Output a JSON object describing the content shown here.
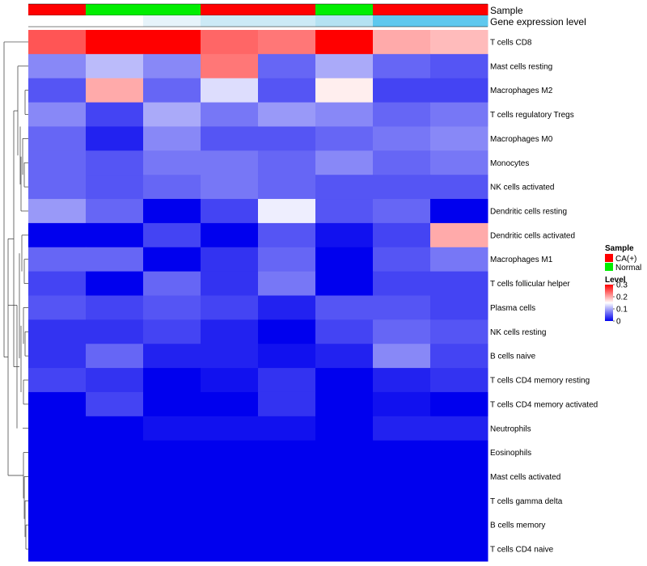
{
  "chart_data": {
    "type": "heatmap",
    "annotation_labels": [
      "Sample",
      "Gene expression level"
    ],
    "sample_groups": [
      "CA(+)",
      "Normal",
      "Normal",
      "CA(+)",
      "CA(+)",
      "Normal",
      "CA(+)",
      "CA(+)"
    ],
    "sample_group_colors": {
      "CA(+)": "#ff0000",
      "Normal": "#00ee00"
    },
    "gene_expression_colors": [
      "#ffffff",
      "#ffffff",
      "#e6f3fa",
      "#cceaf6",
      "#cceaf6",
      "#b4e2f2",
      "#5ec8ee",
      "#5ec8ee"
    ],
    "rows": [
      {
        "label": "T cells CD8",
        "values": [
          0.25,
          0.3,
          0.3,
          0.24,
          0.23,
          0.3,
          0.2,
          0.19
        ]
      },
      {
        "label": "Mast cells resting",
        "values": [
          0.08,
          0.11,
          0.08,
          0.23,
          0.06,
          0.1,
          0.06,
          0.05
        ]
      },
      {
        "label": "Macrophages M2",
        "values": [
          0.05,
          0.2,
          0.06,
          0.13,
          0.05,
          0.16,
          0.04,
          0.04
        ]
      },
      {
        "label": "T cells regulatory  Tregs",
        "values": [
          0.08,
          0.04,
          0.1,
          0.07,
          0.09,
          0.08,
          0.06,
          0.07
        ]
      },
      {
        "label": "Macrophages M0",
        "values": [
          0.06,
          0.02,
          0.08,
          0.05,
          0.05,
          0.06,
          0.07,
          0.08
        ]
      },
      {
        "label": "Monocytes",
        "values": [
          0.06,
          0.05,
          0.07,
          0.07,
          0.06,
          0.08,
          0.06,
          0.07
        ]
      },
      {
        "label": "NK cells activated",
        "values": [
          0.06,
          0.05,
          0.06,
          0.07,
          0.06,
          0.05,
          0.05,
          0.05
        ]
      },
      {
        "label": "Dendritic cells resting",
        "values": [
          0.09,
          0.06,
          0.0,
          0.04,
          0.14,
          0.05,
          0.06,
          0.0
        ]
      },
      {
        "label": "Dendritic cells activated",
        "values": [
          0.0,
          0.0,
          0.04,
          0.0,
          0.05,
          0.01,
          0.04,
          0.2
        ]
      },
      {
        "label": "Macrophages M1",
        "values": [
          0.06,
          0.06,
          0.0,
          0.03,
          0.06,
          0.0,
          0.05,
          0.07
        ]
      },
      {
        "label": "T cells follicular helper",
        "values": [
          0.04,
          0.0,
          0.06,
          0.03,
          0.07,
          0.0,
          0.04,
          0.04
        ]
      },
      {
        "label": "Plasma cells",
        "values": [
          0.05,
          0.04,
          0.05,
          0.04,
          0.02,
          0.05,
          0.05,
          0.04
        ]
      },
      {
        "label": "NK cells resting",
        "values": [
          0.03,
          0.03,
          0.04,
          0.02,
          0.0,
          0.04,
          0.06,
          0.05
        ]
      },
      {
        "label": "B cells naive",
        "values": [
          0.03,
          0.06,
          0.02,
          0.02,
          0.01,
          0.02,
          0.08,
          0.04
        ]
      },
      {
        "label": "T cells CD4 memory resting",
        "values": [
          0.04,
          0.03,
          0.0,
          0.01,
          0.03,
          0.0,
          0.02,
          0.03
        ]
      },
      {
        "label": "T cells CD4 memory activated",
        "values": [
          0.0,
          0.04,
          0.0,
          0.0,
          0.03,
          0.0,
          0.01,
          0.0
        ]
      },
      {
        "label": "Neutrophils",
        "values": [
          0.0,
          0.0,
          0.01,
          0.01,
          0.01,
          0.0,
          0.02,
          0.02
        ]
      },
      {
        "label": "Eosinophils",
        "values": [
          0.0,
          0.0,
          0.0,
          0.0,
          0.0,
          0.0,
          0.0,
          0.0
        ]
      },
      {
        "label": "Mast cells activated",
        "values": [
          0.0,
          0.0,
          0.0,
          0.0,
          0.0,
          0.0,
          0.0,
          0.0
        ]
      },
      {
        "label": "T cells gamma delta",
        "values": [
          0.0,
          0.0,
          0.0,
          0.0,
          0.0,
          0.0,
          0.0,
          0.0
        ]
      },
      {
        "label": "B cells memory",
        "values": [
          0.0,
          0.0,
          0.0,
          0.0,
          0.0,
          0.0,
          0.0,
          0.0
        ]
      },
      {
        "label": "T cells CD4 naive",
        "values": [
          0.0,
          0.0,
          0.0,
          0.0,
          0.0,
          0.0,
          0.0,
          0.0
        ]
      }
    ],
    "color_scale": {
      "min": 0,
      "max": 0.3,
      "colors": [
        "#0000ee",
        "#ffffff",
        "#ff0000"
      ]
    },
    "legend": {
      "sample_title": "Sample",
      "sample_entries": [
        "CA(+)",
        "Normal"
      ],
      "level_title": "Level",
      "level_ticks": [
        "0.3",
        "0.2",
        "0.1",
        "0"
      ],
      "placement": "right"
    },
    "row_dendrogram": true
  }
}
